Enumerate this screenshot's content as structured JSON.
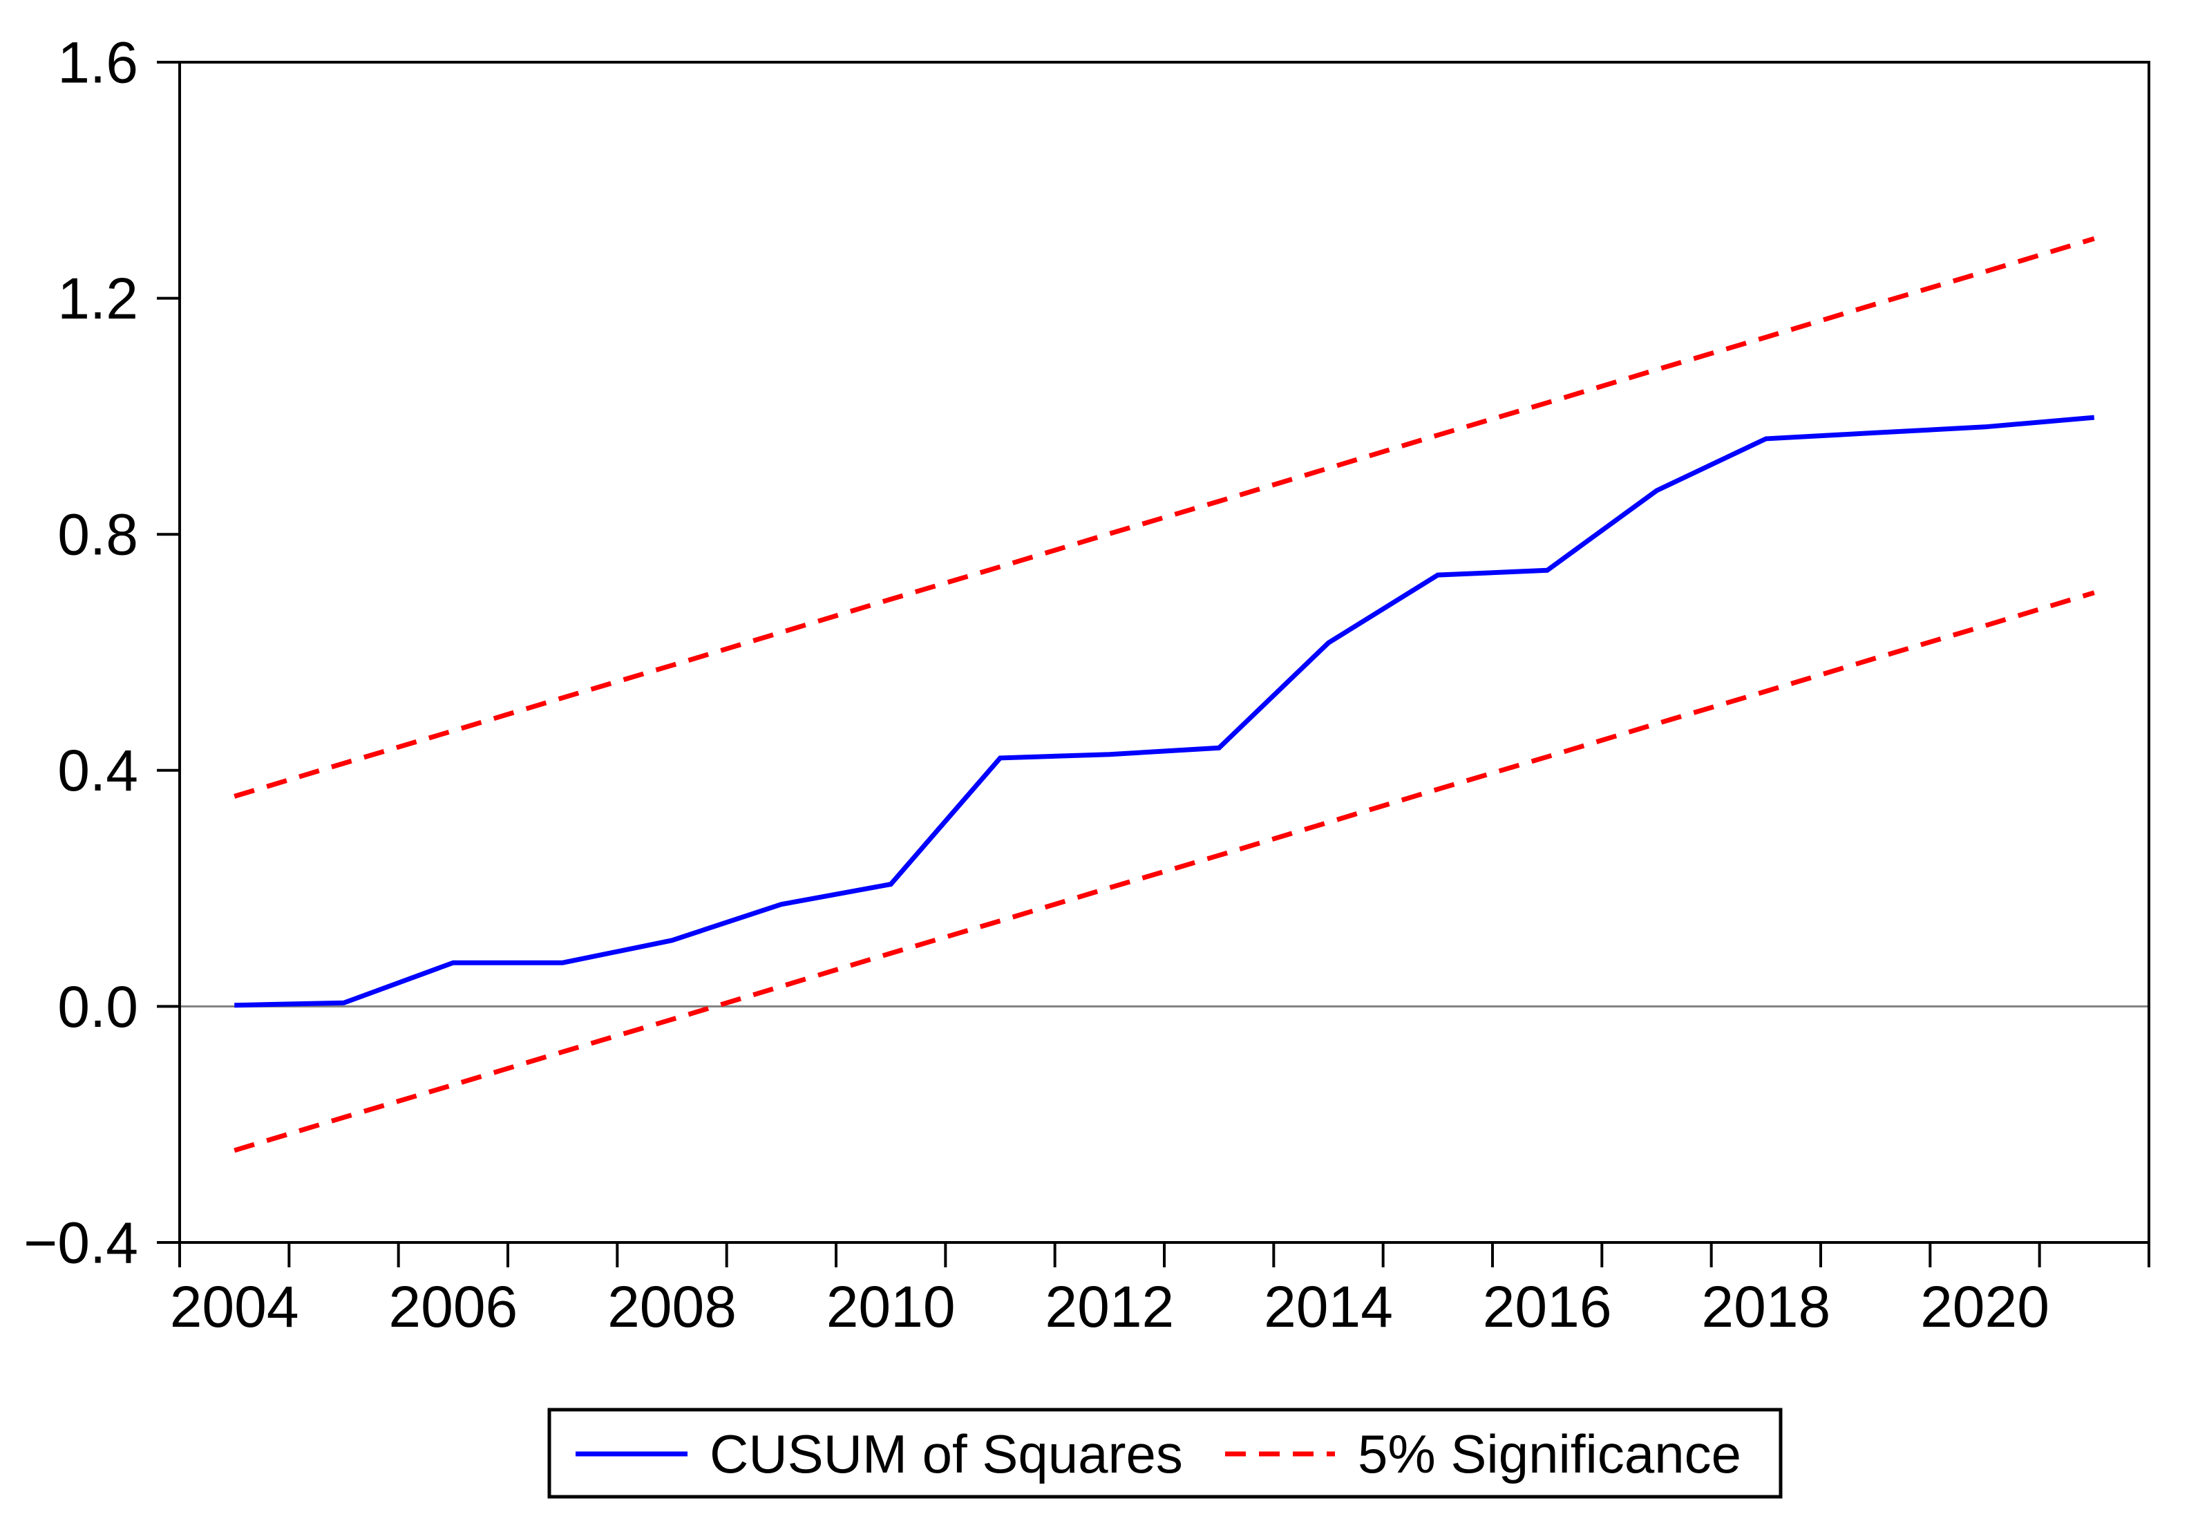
{
  "chart_data": {
    "type": "line",
    "title": "",
    "xlabel": "",
    "ylabel": "",
    "x": [
      2004,
      2005,
      2006,
      2007,
      2008,
      2009,
      2010,
      2011,
      2012,
      2013,
      2014,
      2015,
      2016,
      2017,
      2018,
      2019,
      2020,
      2021
    ],
    "series": [
      {
        "name": "CUSUM of Squares",
        "style": "solid",
        "color": "#0000FF",
        "values": [
          0.002,
          0.006,
          0.074,
          0.074,
          0.112,
          0.173,
          0.207,
          0.421,
          0.427,
          0.438,
          0.616,
          0.731,
          0.739,
          0.874,
          0.962,
          0.972,
          0.982,
          0.998
        ]
      },
      {
        "name": "5% Significance (upper bound)",
        "style": "dashed",
        "color": "#FF0000",
        "values": [
          0.356,
          0.412,
          0.467,
          0.523,
          0.578,
          0.634,
          0.69,
          0.745,
          0.801,
          0.856,
          0.912,
          0.968,
          1.023,
          1.079,
          1.134,
          1.19,
          1.245,
          1.301
        ]
      },
      {
        "name": "5% Significance (lower bound)",
        "style": "dashed",
        "color": "#FF0000",
        "values": [
          -0.244,
          -0.188,
          -0.133,
          -0.077,
          -0.022,
          0.034,
          0.09,
          0.145,
          0.201,
          0.256,
          0.312,
          0.368,
          0.423,
          0.479,
          0.534,
          0.59,
          0.645,
          0.701
        ]
      }
    ],
    "ylim": [
      -0.4,
      1.6
    ],
    "xlim_years": [
      2004,
      2022
    ],
    "y_ticks": [
      -0.4,
      0.0,
      0.4,
      0.8,
      1.2,
      1.6
    ],
    "y_tick_labels": [
      "−0.4",
      "0.0",
      "0.4",
      "0.8",
      "1.2",
      "1.6"
    ],
    "x_label_years": [
      2004,
      2006,
      2008,
      2010,
      2012,
      2014,
      2016,
      2018,
      2020
    ],
    "x_tick_labels": [
      "2004",
      "2006",
      "2008",
      "2010",
      "2012",
      "2014",
      "2016",
      "2018",
      "2020"
    ],
    "grid": false,
    "zero_line": true,
    "legend": {
      "position": "bottom-center",
      "boxed": true,
      "items": [
        {
          "label": "CUSUM of Squares",
          "color": "#0000FF",
          "style": "solid"
        },
        {
          "label": "5% Significance",
          "color": "#FF0000",
          "style": "dashed"
        }
      ]
    }
  },
  "colors": {
    "cusum_line": "#0000FF",
    "significance_line": "#FF0000",
    "zero_line": "#808080",
    "frame": "#000000",
    "background": "#FFFFFF"
  }
}
